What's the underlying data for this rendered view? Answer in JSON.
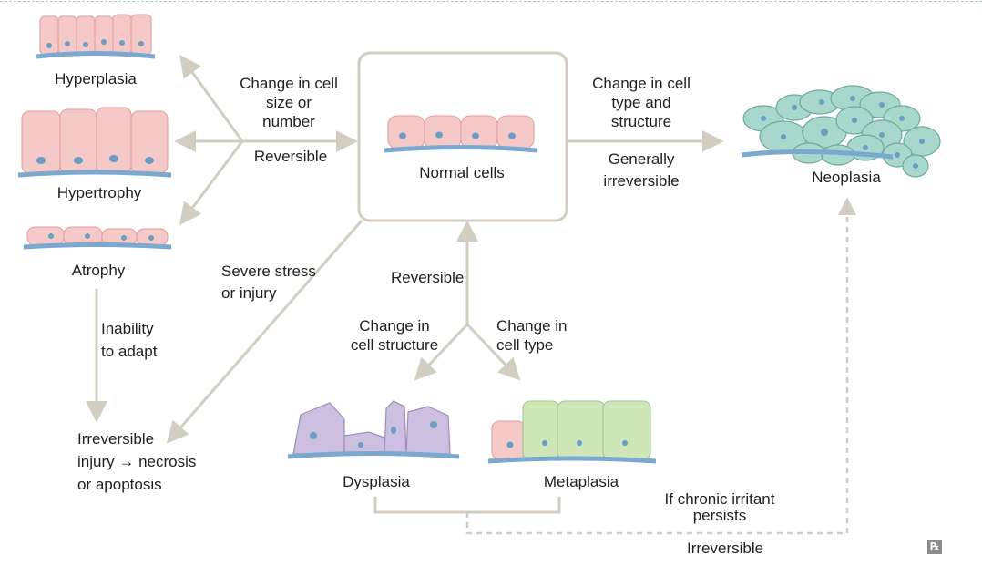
{
  "colors": {
    "arrow": "#d3ccc1",
    "pink_cell": "#f5c9c8",
    "pink_cell_stroke": "#e39a9a",
    "nucleus": "#6a9cc4",
    "membrane": "#7aa8cf",
    "green_cell": "#cfe6b9",
    "purple_cell": "#cdbfdf",
    "neoplasia_cell": "#a8d8cc"
  },
  "labels": {
    "hyperplasia": "Hyperplasia",
    "hypertrophy": "Hypertrophy",
    "atrophy": "Atrophy",
    "normal_cells": "Normal cells",
    "neoplasia": "Neoplasia",
    "dysplasia": "Dysplasia",
    "metaplasia": "Metaplasia",
    "change_size_1": "Change in cell",
    "change_size_2": "size or",
    "change_size_3": "number",
    "reversible_left": "Reversible",
    "change_type_1": "Change in cell",
    "change_type_2": "type and",
    "change_type_3": "structure",
    "generally_1": "Generally",
    "generally_2": "irreversible",
    "severe_1": "Severe stress",
    "severe_2": "or injury",
    "reversible_mid": "Reversible",
    "change_structure_1": "Change in",
    "change_structure_2": "cell structure",
    "change_celltype_1": "Change in",
    "change_celltype_2": "cell type",
    "inability_1": "Inability",
    "inability_2": "to adapt",
    "irrev_injury_1": "Irreversible",
    "irrev_injury_2": "injury → necrosis",
    "irrev_injury_3": "or apoptosis",
    "chronic_1": "If chronic irritant",
    "chronic_2": "persists",
    "irreversible_bottom": "Irreversible",
    "logo": "℞"
  }
}
